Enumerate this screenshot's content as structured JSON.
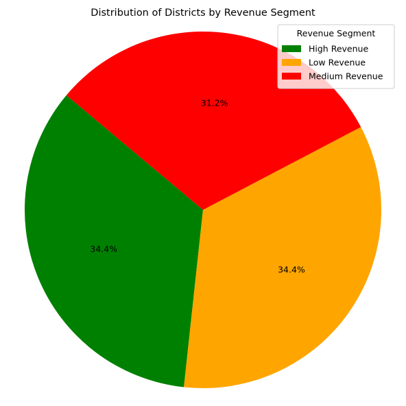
{
  "chart_data": {
    "type": "pie",
    "title": "Distribution of Districts by Revenue Segment",
    "legend": {
      "title": "Revenue Segment",
      "placement": "top-right"
    },
    "slices": [
      {
        "label": "High Revenue",
        "value": 34.4,
        "display": "34.4%",
        "color": "#008000"
      },
      {
        "label": "Low Revenue",
        "value": 34.4,
        "display": "34.4%",
        "color": "#FFA500"
      },
      {
        "label": "Medium Revenue",
        "value": 31.2,
        "display": "31.2%",
        "color": "#FF0000"
      }
    ]
  }
}
